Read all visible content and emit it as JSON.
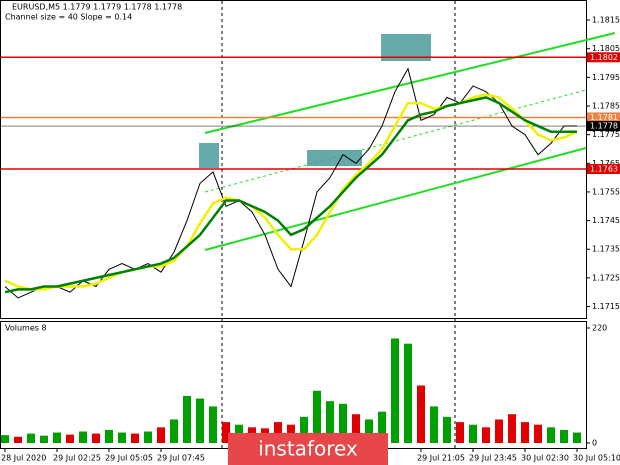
{
  "chart_data": {
    "type": "line",
    "title": "EURUSD,M5  1.1779 1.1779 1.1778 1.1778",
    "subtitle": "Channel size = 40 Slope = 0.14",
    "volume_title": "Volumes 8",
    "watermark": "instaforex",
    "categories": [
      "28 Jul 2020",
      null,
      null,
      null,
      "29 Jul 02:25",
      null,
      null,
      null,
      "29 Jul 05:05",
      null,
      null,
      null,
      "29 Jul 07:45",
      null,
      null,
      null,
      null,
      null,
      null,
      null,
      null,
      null,
      null,
      null,
      null,
      null,
      null,
      null,
      null,
      null,
      null,
      null,
      "29 Jul 21:05",
      null,
      null,
      null,
      "29 Jul 23:45",
      null,
      null,
      null,
      "30 Jul 02:30",
      null,
      null,
      null,
      "30 Jul 05:10"
    ],
    "series": [
      {
        "name": "Close",
        "color": "#000000",
        "values": [
          1.1722,
          1.1718,
          1.172,
          1.1722,
          1.1722,
          1.172,
          1.1724,
          1.1722,
          1.1728,
          1.173,
          1.1728,
          1.173,
          1.1727,
          1.1734,
          1.1745,
          1.1758,
          1.1762,
          1.175,
          1.1752,
          1.1748,
          1.174,
          1.1728,
          1.1722,
          1.1738,
          1.1755,
          1.176,
          1.1768,
          1.1765,
          1.177,
          1.1778,
          1.179,
          1.1798,
          1.178,
          1.1782,
          1.1788,
          1.1786,
          1.1792,
          1.179,
          1.1786,
          1.1778,
          1.1775,
          1.1768,
          1.1772,
          1.1778,
          1.1778
        ]
      },
      {
        "name": "MA fast",
        "color": "#f0f000",
        "values": [
          1.1724,
          1.1722,
          1.1721,
          1.1721,
          1.1722,
          1.1722,
          1.1722,
          1.1723,
          1.1725,
          1.1727,
          1.1728,
          1.1729,
          1.1729,
          1.1731,
          1.1736,
          1.1744,
          1.1751,
          1.1753,
          1.1752,
          1.175,
          1.1746,
          1.174,
          1.1735,
          1.1735,
          1.174,
          1.1748,
          1.1756,
          1.1761,
          1.1765,
          1.177,
          1.1778,
          1.1786,
          1.1786,
          1.1784,
          1.1785,
          1.1786,
          1.1788,
          1.1789,
          1.1788,
          1.1784,
          1.178,
          1.1775,
          1.1773,
          1.1774,
          1.1776
        ]
      },
      {
        "name": "MA slow",
        "color": "#008000",
        "values": [
          1.172,
          1.1721,
          1.1721,
          1.1722,
          1.1722,
          1.1723,
          1.1724,
          1.1725,
          1.1726,
          1.1727,
          1.1728,
          1.1729,
          1.173,
          1.1732,
          1.1736,
          1.174,
          1.1746,
          1.1752,
          1.1752,
          1.175,
          1.1748,
          1.1745,
          1.174,
          1.1742,
          1.1746,
          1.175,
          1.1755,
          1.176,
          1.1764,
          1.1768,
          1.1774,
          1.178,
          1.1782,
          1.1783,
          1.1785,
          1.1786,
          1.1787,
          1.1788,
          1.1786,
          1.1783,
          1.178,
          1.1778,
          1.1776,
          1.1776,
          1.1776
        ]
      }
    ],
    "volumes": [
      15,
      12,
      18,
      14,
      20,
      16,
      22,
      18,
      25,
      20,
      18,
      22,
      30,
      45,
      90,
      85,
      70,
      40,
      35,
      30,
      28,
      40,
      35,
      50,
      100,
      80,
      75,
      55,
      45,
      60,
      200,
      190,
      110,
      70,
      50,
      40,
      35,
      30,
      45,
      55,
      40,
      35,
      30,
      25,
      20
    ],
    "volume_colors": {
      "up": "#00a000",
      "down": "#e00000"
    },
    "levels": [
      {
        "value": 1.1802,
        "color": "#e00000"
      },
      {
        "value": 1.1763,
        "color": "#e00000"
      },
      {
        "value": 1.1781,
        "color": "#f08040"
      },
      {
        "value": 1.1778,
        "color": "#000000"
      }
    ],
    "ylim": [
      1.1711,
      1.1822
    ],
    "yticks": [
      1.1815,
      1.1805,
      1.1795,
      1.1785,
      1.1775,
      1.1765,
      1.1755,
      1.1745,
      1.1735,
      1.1725,
      1.1715
    ],
    "volume_ylim": [
      0,
      220
    ],
    "volume_yticks": [
      220,
      0
    ]
  }
}
